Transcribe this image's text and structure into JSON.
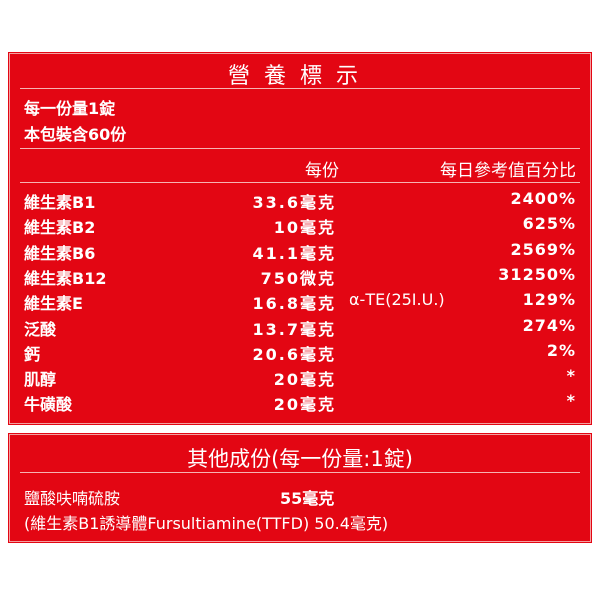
{
  "title": "營養標示",
  "serving": {
    "line1": "每一份量1錠",
    "line2": "本包裝含60份"
  },
  "header": {
    "per_serving": "每份",
    "daily_value": "每日參考值百分比"
  },
  "rows": [
    {
      "name": "維生素B1",
      "amount": "33.6毫克",
      "extra": "",
      "percent": "2400%"
    },
    {
      "name": "維生素B2",
      "amount": "10毫克",
      "extra": "",
      "percent": "625%"
    },
    {
      "name": "維生素B6",
      "amount": "41.1毫克",
      "extra": "",
      "percent": "2569%"
    },
    {
      "name": "維生素B12",
      "amount": "750微克",
      "extra": "",
      "percent": "31250%"
    },
    {
      "name": "維生素E",
      "amount": "16.8毫克",
      "extra": "α-TE(25I.U.)",
      "percent": "129%"
    },
    {
      "name": "泛酸",
      "amount": "13.7毫克",
      "extra": "",
      "percent": "274%"
    },
    {
      "name": "鈣",
      "amount": "20.6毫克",
      "extra": "",
      "percent": "2%"
    },
    {
      "name": "肌醇",
      "amount": "20毫克",
      "extra": "",
      "percent": "*"
    },
    {
      "name": "牛磺酸",
      "amount": "20毫克",
      "extra": "",
      "percent": "*"
    }
  ],
  "other": {
    "title": "其他成份(每一份量:1錠)",
    "item1_name": "鹽酸呋喃硫胺",
    "item1_amount": "55毫克",
    "item2": "(維生素B1誘導體Fursultiamine(TTFD)   50.4毫克)"
  }
}
